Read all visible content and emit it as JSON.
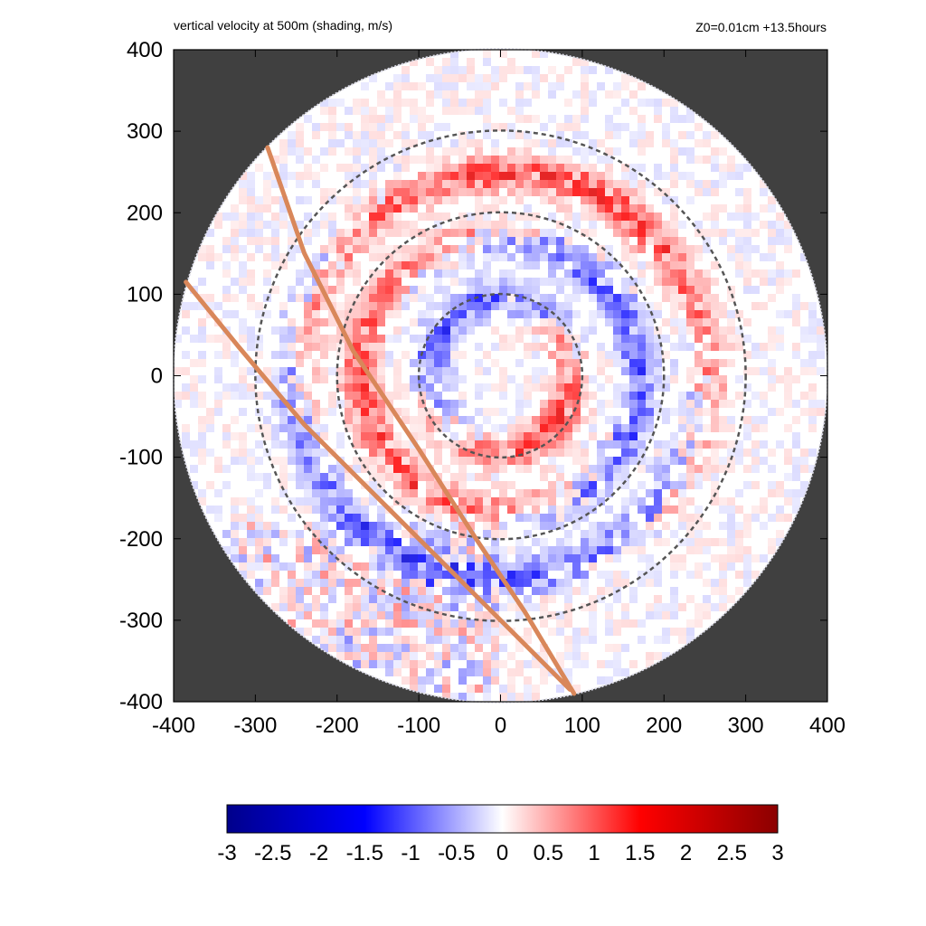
{
  "chart_data": {
    "type": "heatmap",
    "title": "vertical velocity at 500m (shading, m/s)",
    "subtitle": "Z0=0.01cm  +13.5hours",
    "xlim": [
      -400,
      400
    ],
    "ylim": [
      -400,
      400
    ],
    "x_ticks": [
      "-400",
      "-300",
      "-200",
      "-100",
      "0",
      "100",
      "200",
      "300",
      "400"
    ],
    "y_ticks": [
      "400",
      "300",
      "200",
      "100",
      "0",
      "-100",
      "-200",
      "-300",
      "-400"
    ],
    "domain_radius": 400,
    "range_rings": [
      100,
      200,
      300
    ],
    "colorbar": {
      "min": -3,
      "max": 3,
      "ticks": [
        "-3",
        "-2.5",
        "-2",
        "-1.5",
        "-1",
        "-0.5",
        "0",
        "0.5",
        "1",
        "1.5",
        "2",
        "2.5",
        "3"
      ],
      "colors": [
        "#00008b",
        "#0000ff",
        "#ffffff",
        "#ff0000",
        "#8b0000"
      ]
    },
    "tracks": [
      {
        "points": [
          [
            -285,
            280
          ],
          [
            -240,
            150
          ],
          [
            -180,
            30
          ],
          [
            -100,
            -90
          ],
          [
            -30,
            -200
          ],
          [
            30,
            -290
          ],
          [
            90,
            -390
          ]
        ]
      },
      {
        "points": [
          [
            -385,
            115
          ],
          [
            -320,
            35
          ],
          [
            -240,
            -60
          ],
          [
            -150,
            -150
          ],
          [
            -60,
            -240
          ],
          [
            20,
            -320
          ],
          [
            85,
            -385
          ]
        ]
      }
    ],
    "colors": {
      "outside_domain": "#404040",
      "track": "#d9875a",
      "ring": "#555555"
    }
  }
}
